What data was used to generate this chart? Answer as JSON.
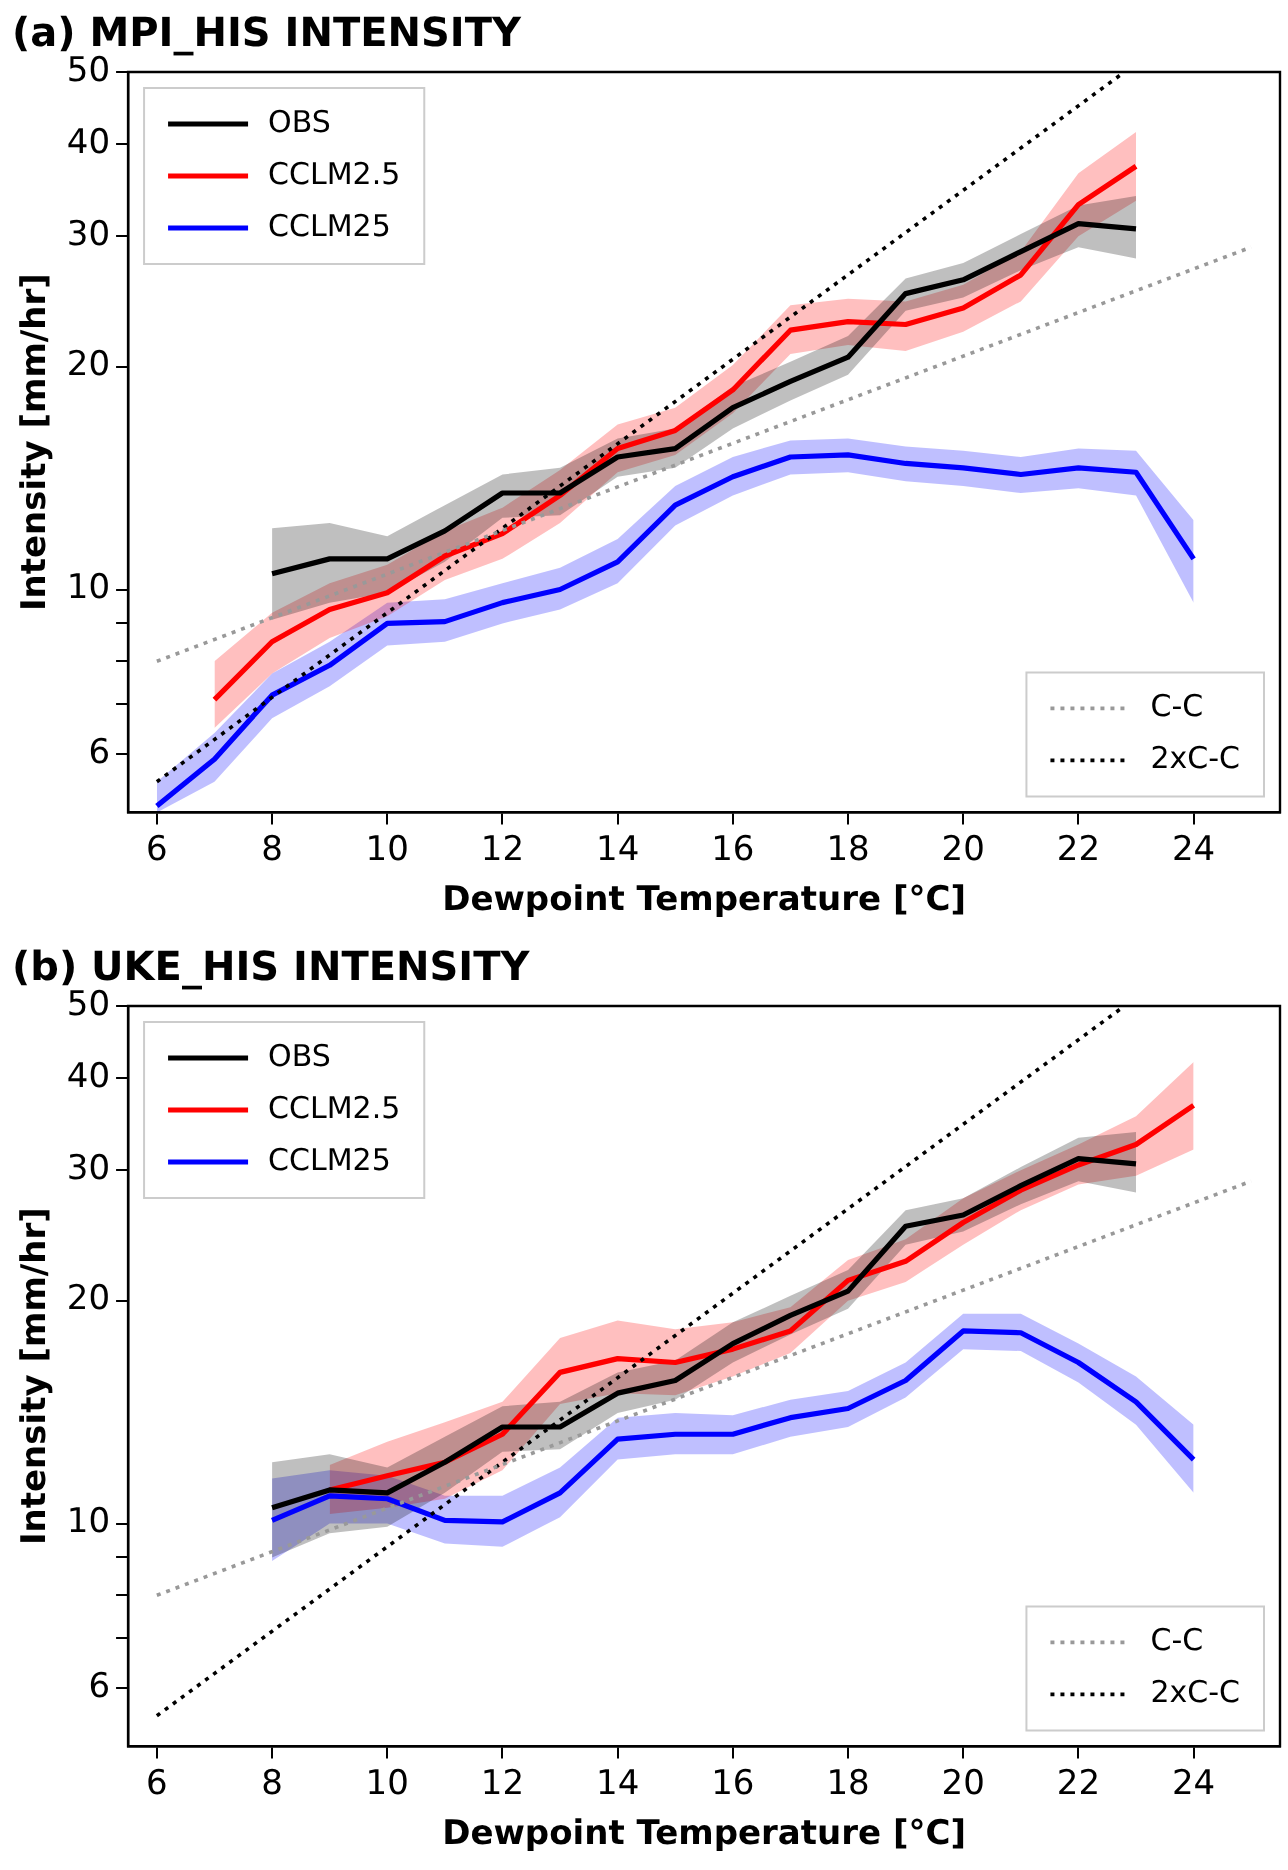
{
  "chart_data": [
    {
      "type": "line",
      "title": "(a) MPI_HIS INTENSITY",
      "xlabel": "Dewpoint Temperature [°C]",
      "ylabel": "Intensity [mm/hr]",
      "log": "y",
      "grid": false,
      "legend": "top left",
      "marker": "none",
      "xlim": [
        5.5,
        25.5
      ],
      "xticks": [
        6,
        8,
        10,
        12,
        14,
        16,
        18,
        20,
        22,
        24
      ],
      "ylim": [
        5,
        50
      ],
      "yticks": [
        6,
        {
          "value": 7,
          "label": null
        },
        {
          "value": 8,
          "label": null
        },
        {
          "value": 9,
          "label": null
        },
        10,
        20,
        30,
        40,
        50
      ],
      "series": [
        {
          "name": "OBS",
          "color": "#000000",
          "line_style": "solid",
          "x": [
            8,
            9,
            10,
            11,
            12,
            13,
            14,
            15,
            16,
            17,
            18,
            19,
            20,
            21,
            22,
            23
          ],
          "values": [
            10.5,
            11.0,
            11.0,
            12.0,
            13.5,
            13.5,
            15.1,
            15.5,
            17.6,
            19.1,
            20.6,
            25.1,
            26.2,
            28.6,
            31.2,
            30.7
          ],
          "lower": [
            9.1,
            9.6,
            9.9,
            10.9,
            12.5,
            12.6,
            14.2,
            14.6,
            16.5,
            18.0,
            19.5,
            23.8,
            24.8,
            27.0,
            29.0,
            28.0
          ],
          "upper": [
            12.1,
            12.3,
            11.8,
            13.0,
            14.3,
            14.6,
            16.0,
            16.5,
            18.8,
            20.3,
            22.0,
            26.3,
            27.6,
            30.2,
            33.0,
            34.0
          ]
        },
        {
          "name": "CCLM2.5",
          "color": "#ff0000",
          "line_style": "solid",
          "x": [
            7,
            8,
            9,
            10,
            11,
            12,
            13,
            14,
            15,
            16,
            17,
            18,
            19,
            20,
            21,
            22,
            23
          ],
          "values": [
            7.1,
            8.5,
            9.4,
            9.9,
            11.1,
            11.9,
            13.4,
            15.5,
            16.4,
            18.6,
            22.4,
            23.0,
            22.8,
            24.0,
            26.6,
            33.1,
            37.3
          ],
          "lower": [
            6.5,
            7.7,
            8.6,
            9.2,
            10.3,
            11.0,
            12.3,
            14.4,
            15.2,
            17.3,
            20.8,
            21.4,
            21.0,
            22.3,
            24.5,
            30.0,
            33.5
          ],
          "upper": [
            8.0,
            9.3,
            10.2,
            10.8,
            12.0,
            12.9,
            14.5,
            16.7,
            17.6,
            20.1,
            24.2,
            24.7,
            24.5,
            25.8,
            28.6,
            36.5,
            41.5
          ]
        },
        {
          "name": "CCLM25",
          "color": "#0000ff",
          "line_style": "solid",
          "x": [
            6,
            7,
            8,
            9,
            10,
            11,
            12,
            13,
            14,
            15,
            16,
            17,
            18,
            19,
            20,
            21,
            22,
            23,
            24
          ],
          "values": [
            5.1,
            5.9,
            7.2,
            7.9,
            9.0,
            9.05,
            9.6,
            10.0,
            10.9,
            13.0,
            14.2,
            15.1,
            15.2,
            14.8,
            14.6,
            14.3,
            14.6,
            14.4,
            11.0
          ],
          "lower": [
            5.0,
            5.5,
            6.7,
            7.4,
            8.4,
            8.5,
            9.0,
            9.4,
            10.2,
            12.2,
            13.4,
            14.3,
            14.4,
            14.0,
            13.8,
            13.5,
            13.7,
            13.4,
            9.6
          ],
          "upper": [
            5.5,
            6.4,
            7.7,
            8.5,
            9.6,
            9.7,
            10.2,
            10.7,
            11.7,
            13.8,
            15.1,
            15.9,
            16.0,
            15.6,
            15.4,
            15.1,
            15.5,
            15.4,
            12.4
          ]
        },
        {
          "name": "C-C",
          "color": "#999999",
          "line_style": "dotted",
          "x": [
            6,
            25
          ],
          "values": [
            8.0,
            29.0
          ]
        },
        {
          "name": "2xC-C",
          "color": "#000000",
          "line_style": "dotted",
          "x": [
            6,
            22.8
          ],
          "values": [
            5.5,
            50
          ]
        }
      ]
    },
    {
      "type": "line",
      "title": "(b) UKE_HIS INTENSITY",
      "xlabel": "Dewpoint Temperature [°C]",
      "ylabel": "Intensity [mm/hr]",
      "log": "y",
      "grid": false,
      "legend": "top left",
      "marker": "none",
      "xlim": [
        5.5,
        25.5
      ],
      "xticks": [
        6,
        8,
        10,
        12,
        14,
        16,
        18,
        20,
        22,
        24
      ],
      "ylim": [
        5,
        50
      ],
      "yticks": [
        6,
        {
          "value": 7,
          "label": null
        },
        {
          "value": 8,
          "label": null
        },
        {
          "value": 9,
          "label": null
        },
        10,
        20,
        30,
        40,
        50
      ],
      "series": [
        {
          "name": "OBS",
          "color": "#000000",
          "line_style": "solid",
          "x": [
            8,
            9,
            10,
            11,
            12,
            13,
            14,
            15,
            16,
            17,
            18,
            19,
            20,
            21,
            22,
            23
          ],
          "values": [
            10.5,
            11.1,
            11.0,
            12.1,
            13.5,
            13.5,
            15.0,
            15.6,
            17.5,
            19.1,
            20.6,
            25.2,
            26.1,
            28.6,
            31.1,
            30.6
          ],
          "lower": [
            9.0,
            9.7,
            9.9,
            11.0,
            12.5,
            12.6,
            14.1,
            14.7,
            16.5,
            18.0,
            19.5,
            23.8,
            24.8,
            27.0,
            29.0,
            28.0
          ],
          "upper": [
            12.1,
            12.4,
            11.9,
            13.1,
            14.4,
            14.6,
            16.0,
            16.6,
            18.7,
            20.3,
            22.0,
            26.5,
            27.5,
            30.3,
            33.2,
            33.8
          ]
        },
        {
          "name": "CCLM2.5",
          "color": "#ff0000",
          "line_style": "solid",
          "x": [
            9,
            10,
            11,
            12,
            13,
            14,
            15,
            16,
            17,
            18,
            19,
            20,
            21,
            22,
            23,
            24
          ],
          "values": [
            11.1,
            11.6,
            12.1,
            13.2,
            16.0,
            16.7,
            16.5,
            17.2,
            18.2,
            21.3,
            22.6,
            25.5,
            28.2,
            30.5,
            32.5,
            36.7
          ],
          "lower": [
            10.3,
            10.5,
            10.8,
            11.8,
            14.5,
            15.0,
            14.9,
            15.8,
            17.0,
            20.0,
            21.2,
            23.8,
            26.5,
            28.7,
            29.5,
            32.0
          ],
          "upper": [
            12.0,
            12.9,
            13.7,
            14.6,
            17.8,
            18.8,
            18.3,
            18.7,
            19.6,
            22.7,
            24.2,
            27.5,
            30.0,
            32.5,
            35.5,
            42.0
          ]
        },
        {
          "name": "CCLM25",
          "color": "#0000ff",
          "line_style": "solid",
          "x": [
            8,
            9,
            10,
            11,
            12,
            13,
            14,
            15,
            16,
            17,
            18,
            19,
            20,
            21,
            22,
            23,
            24
          ],
          "values": [
            10.1,
            10.9,
            10.8,
            10.1,
            10.05,
            11.0,
            13.0,
            13.2,
            13.2,
            13.9,
            14.3,
            15.6,
            18.2,
            18.1,
            16.5,
            14.6,
            12.2
          ],
          "lower": [
            8.9,
            10.0,
            10.0,
            9.4,
            9.3,
            10.2,
            12.2,
            12.4,
            12.4,
            13.1,
            13.5,
            14.8,
            17.2,
            17.1,
            15.5,
            13.6,
            11.0
          ],
          "upper": [
            11.5,
            11.8,
            11.6,
            10.9,
            10.9,
            11.9,
            13.9,
            14.1,
            14.0,
            14.7,
            15.1,
            16.5,
            19.2,
            19.2,
            17.5,
            15.8,
            13.6
          ]
        },
        {
          "name": "C-C",
          "color": "#999999",
          "line_style": "dotted",
          "x": [
            6,
            25
          ],
          "values": [
            8.0,
            29.0
          ]
        },
        {
          "name": "2xC-C",
          "color": "#000000",
          "line_style": "dotted",
          "x": [
            6,
            22.8
          ],
          "values": [
            5.5,
            50
          ]
        }
      ]
    }
  ]
}
